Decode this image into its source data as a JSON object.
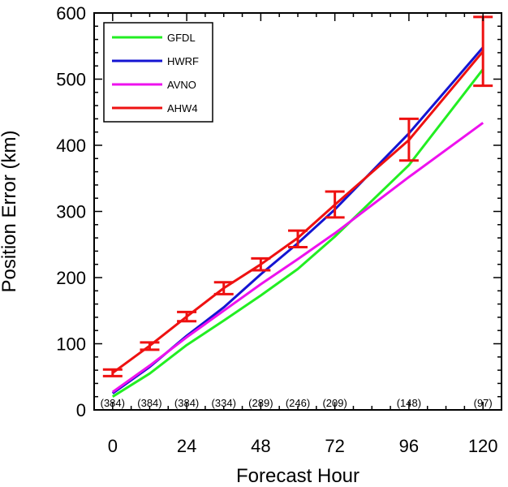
{
  "chart_data": {
    "type": "line",
    "title": "",
    "xlabel": "Forecast Hour",
    "ylabel": "Position Error (km)",
    "xlim": [
      -6,
      126
    ],
    "ylim": [
      0,
      600
    ],
    "xticks": [
      0,
      24,
      48,
      72,
      96,
      120
    ],
    "yticks": [
      0,
      100,
      200,
      300,
      400,
      500,
      600
    ],
    "x": [
      0,
      12,
      24,
      36,
      48,
      60,
      72,
      96,
      120
    ],
    "sample_counts": [
      "(384)",
      "(384)",
      "(384)",
      "(334)",
      "(289)",
      "(246)",
      "(209)",
      "(148)",
      "(97)"
    ],
    "sample_count_x": [
      0,
      12,
      24,
      36,
      48,
      60,
      72,
      96,
      120
    ],
    "grid": false,
    "legend_position": "top-left",
    "series": [
      {
        "name": "GFDL",
        "color": "#22ee22",
        "values": [
          20,
          55,
          98,
          135,
          173,
          213,
          262,
          370,
          515
        ]
      },
      {
        "name": "HWRF",
        "color": "#1414d2",
        "values": [
          25,
          65,
          112,
          155,
          205,
          252,
          303,
          418,
          548
        ]
      },
      {
        "name": "AVNO",
        "color": "#ee11ee",
        "values": [
          27,
          67,
          110,
          150,
          190,
          228,
          267,
          352,
          434
        ]
      },
      {
        "name": "AHW4",
        "color": "#ee1111",
        "values": [
          56,
          97,
          141,
          184,
          220,
          260,
          310,
          408,
          542
        ],
        "error_low": [
          51,
          91,
          134,
          175,
          211,
          246,
          291,
          377,
          490
        ],
        "error_high": [
          61,
          102,
          148,
          193,
          229,
          271,
          330,
          440,
          594
        ]
      }
    ]
  }
}
